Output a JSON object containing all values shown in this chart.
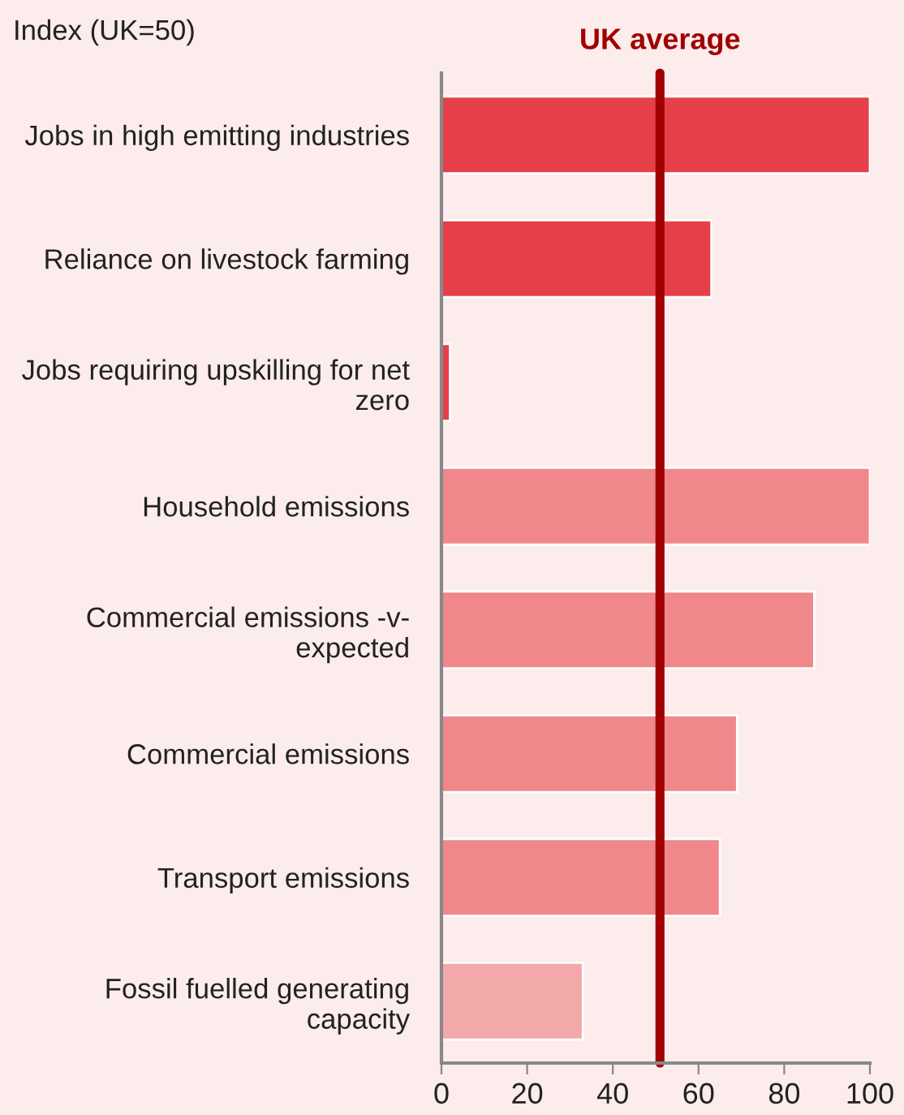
{
  "chart_data": {
    "type": "bar",
    "orientation": "horizontal",
    "title": "Index (UK=50)",
    "categories": [
      "Jobs in high emitting industries",
      "Reliance on livestock farming",
      "Jobs requiring upskilling for net zero",
      "Household emissions",
      "Commercial emissions -v- expected",
      "Commercial emissions",
      "Transport emissions",
      "Fossil fuelled generating capacity"
    ],
    "values": [
      100,
      63,
      2,
      100,
      87,
      69,
      65,
      33
    ],
    "colors": [
      "#e5404a",
      "#e5404a",
      "#e5404a",
      "#ef878b",
      "#ef878b",
      "#ef878b",
      "#ef878b",
      "#f3a8aa"
    ],
    "xlim": [
      0,
      100
    ],
    "xticks": [
      0,
      20,
      40,
      60,
      80,
      100
    ],
    "grid": false,
    "ref_lines": [
      {
        "axis": "x",
        "value": 51,
        "label": "UK average",
        "color": "#a00000"
      }
    ]
  }
}
